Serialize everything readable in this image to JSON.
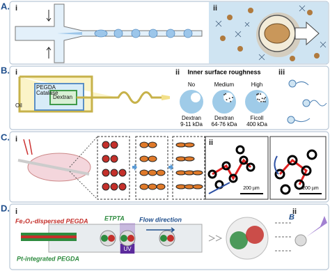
{
  "panel_a": {
    "label": "A.",
    "parts": [
      "i",
      "ii"
    ]
  },
  "panel_b": {
    "label": "B.",
    "parts": [
      "i",
      "ii",
      "iii"
    ],
    "device_labels": [
      "Oil",
      "PEGDA",
      "Catalase",
      "Dextran"
    ],
    "roughness_title": "Inner surface roughness",
    "roughness": [
      {
        "level": "No",
        "material": "Dextran",
        "weight": "9-11 kDa"
      },
      {
        "level": "Medium",
        "material": "Dextran",
        "weight": "64-76 kDa"
      },
      {
        "level": "High",
        "material": "Ficoll",
        "weight": "400 kDa"
      }
    ]
  },
  "panel_c": {
    "label": "C.",
    "parts": [
      "i",
      "ii"
    ],
    "scale_bars": [
      "200 µm",
      "200 µm"
    ]
  },
  "panel_d": {
    "label": "D.",
    "parts": [
      "i",
      "ii"
    ],
    "labels": {
      "shell": "Fe₃O₄-dispersed PEGDA",
      "core": "ETPTA",
      "flow": "Flow direction",
      "inner": "Pt-integrated PEGDA",
      "uv": "UV"
    },
    "field": "B"
  }
}
